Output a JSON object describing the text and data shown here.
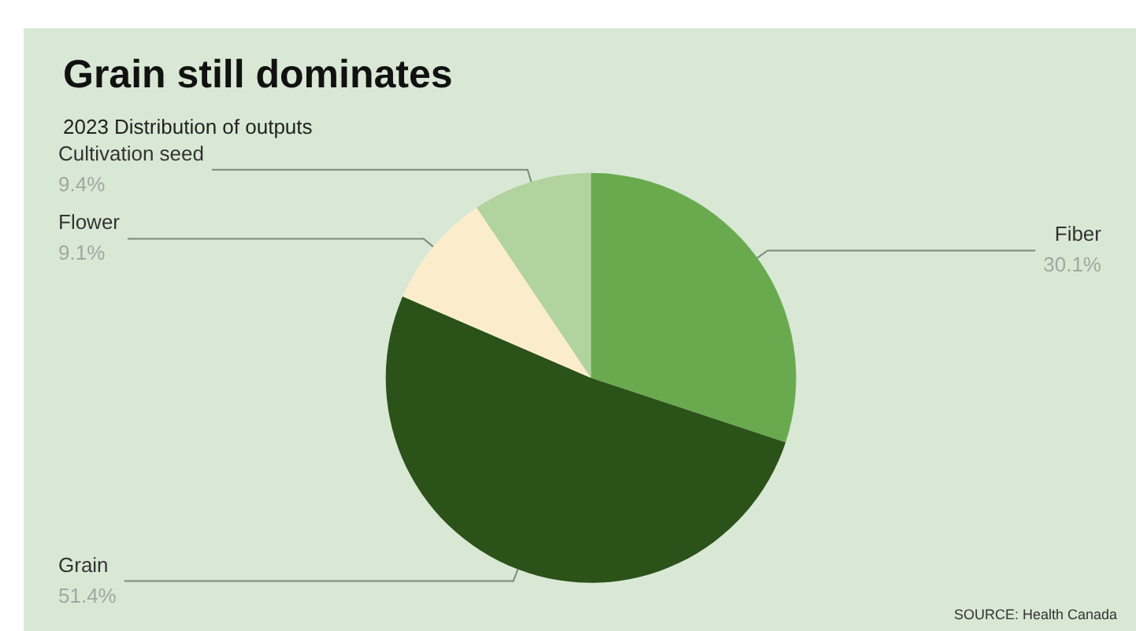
{
  "chart_data": {
    "type": "pie",
    "title": "Grain still dominates",
    "subtitle": "2023 Distribution of outputs",
    "categories": [
      "Fiber",
      "Grain",
      "Flower",
      "Cultivation seed"
    ],
    "values": [
      30.1,
      51.4,
      9.1,
      9.4
    ],
    "value_labels": [
      "30.1%",
      "51.4%",
      "9.1%",
      "9.4%"
    ],
    "colors": [
      "#6aaa4f",
      "#2b5219",
      "#fbedcc",
      "#b1d39e"
    ],
    "annotations": [
      "SOURCE: Health Canada"
    ]
  }
}
